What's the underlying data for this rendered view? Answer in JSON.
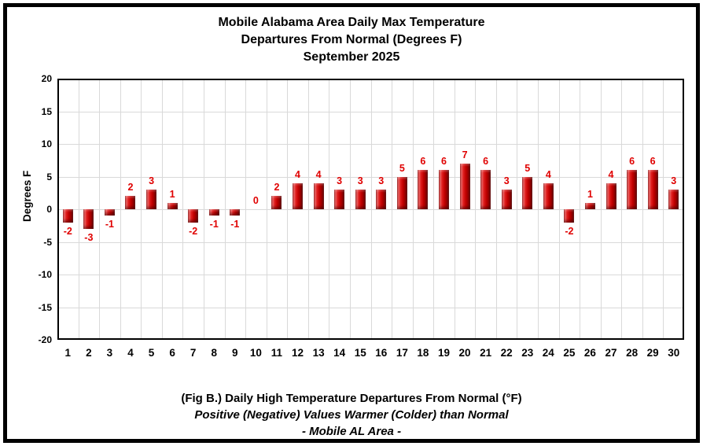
{
  "title": {
    "line1": "Mobile Alabama Area Daily Max Temperature",
    "line2": "Departures From Normal (Degrees F)",
    "line3": "September 2025"
  },
  "captions": {
    "line1": "(Fig B.) Daily High Temperature Departures From Normal (°F)",
    "line2": "Positive (Negative) Values Warmer (Colder) than Normal",
    "line3": "- Mobile AL Area -"
  },
  "chart_data": {
    "type": "bar",
    "title": "Mobile Alabama Area Daily Max Temperature Departures From Normal (Degrees F) September 2025",
    "categories": [
      "1",
      "2",
      "3",
      "4",
      "5",
      "6",
      "7",
      "8",
      "9",
      "10",
      "11",
      "12",
      "13",
      "14",
      "15",
      "16",
      "17",
      "18",
      "19",
      "20",
      "21",
      "22",
      "23",
      "24",
      "25",
      "26",
      "27",
      "28",
      "29",
      "30"
    ],
    "values": [
      -2,
      -3,
      -1,
      2,
      3,
      1,
      -2,
      -1,
      -1,
      0,
      2,
      4,
      4,
      3,
      3,
      3,
      5,
      6,
      6,
      7,
      6,
      3,
      5,
      4,
      -2,
      1,
      4,
      6,
      6,
      3
    ],
    "xlabel": "",
    "ylabel": "Degrees F",
    "ylim": [
      -20,
      20
    ],
    "yticks": [
      20,
      15,
      10,
      5,
      0,
      -5,
      -10,
      -15,
      -20
    ],
    "gridline_degrees": [
      15,
      10,
      5,
      0,
      -5,
      -10,
      -15
    ],
    "grid": true,
    "legend": "none",
    "data_labels": true,
    "colors": {
      "bar": "#c00000",
      "bar_highlight": "#f26a6a",
      "bar_shadow": "#5f0000",
      "data_label": "#e00000",
      "gridline": "#d9d9d9",
      "axis": "#000000"
    }
  }
}
